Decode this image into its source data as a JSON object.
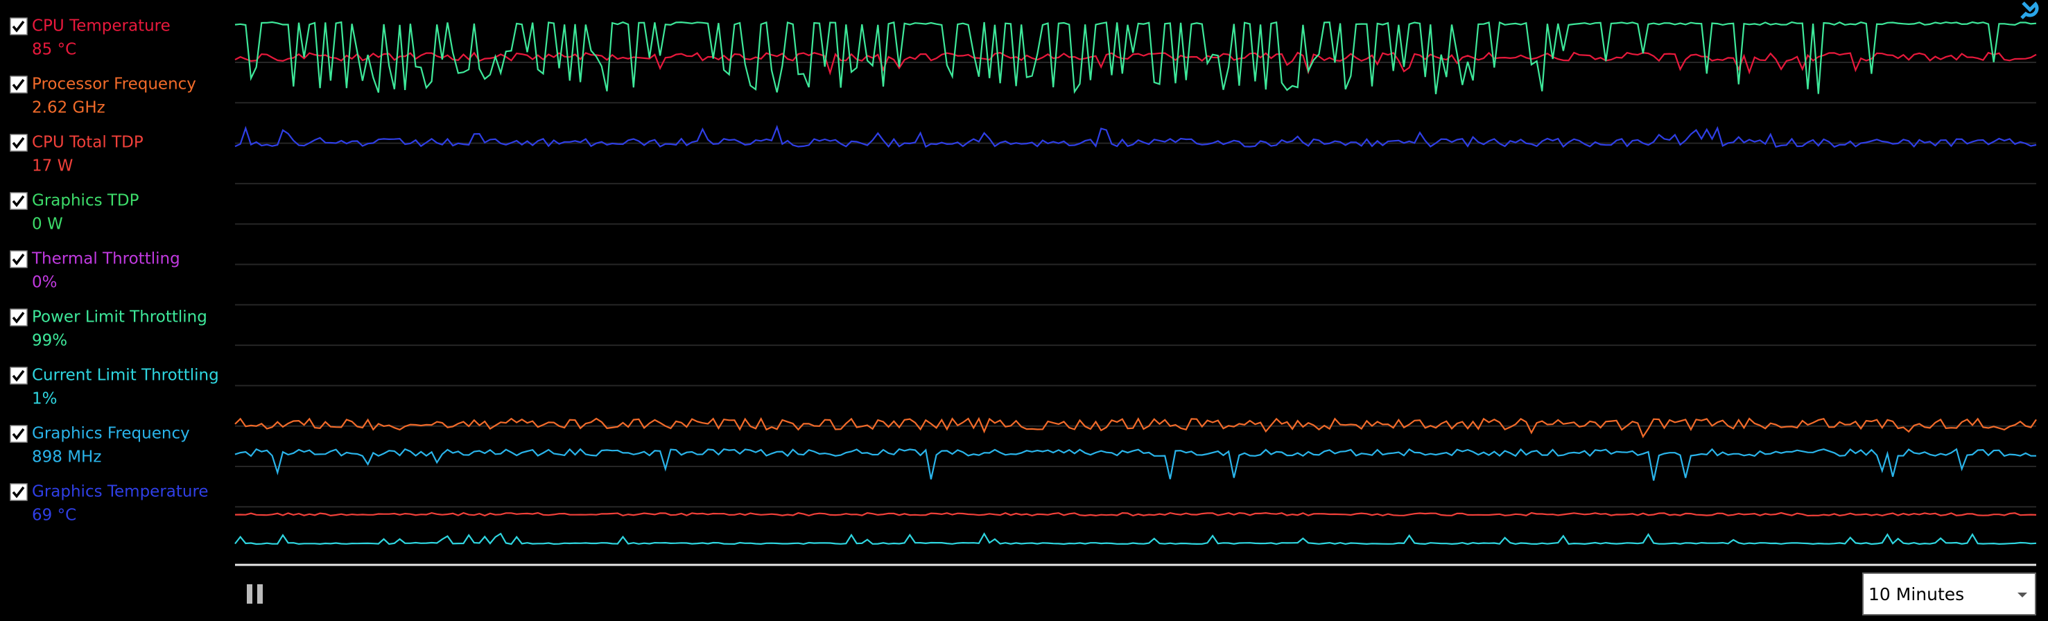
{
  "legend": [
    {
      "name": "CPU Temperature",
      "value": "85 °C",
      "color": "#e8193c",
      "checked": true
    },
    {
      "name": "Processor Frequency",
      "value": "2.62 GHz",
      "color": "#f26b2a",
      "checked": true
    },
    {
      "name": "CPU Total TDP",
      "value": "17 W",
      "color": "#f0403a",
      "checked": true
    },
    {
      "name": "Graphics TDP",
      "value": "0 W",
      "color": "#3ddc6a",
      "checked": true
    },
    {
      "name": "Thermal Throttling",
      "value": "0%",
      "color": "#c13ae0",
      "checked": true
    },
    {
      "name": "Power Limit Throttling",
      "value": "99%",
      "color": "#3ee89a",
      "checked": true
    },
    {
      "name": "Current Limit Throttling",
      "value": "1%",
      "color": "#2fd6e0",
      "checked": true
    },
    {
      "name": "Graphics Frequency",
      "value": "898 MHz",
      "color": "#2ab4ea",
      "checked": true
    },
    {
      "name": "Graphics Temperature",
      "value": "69 °C",
      "color": "#2f3fe6",
      "checked": true
    }
  ],
  "time_range": "10 Minutes"
}
